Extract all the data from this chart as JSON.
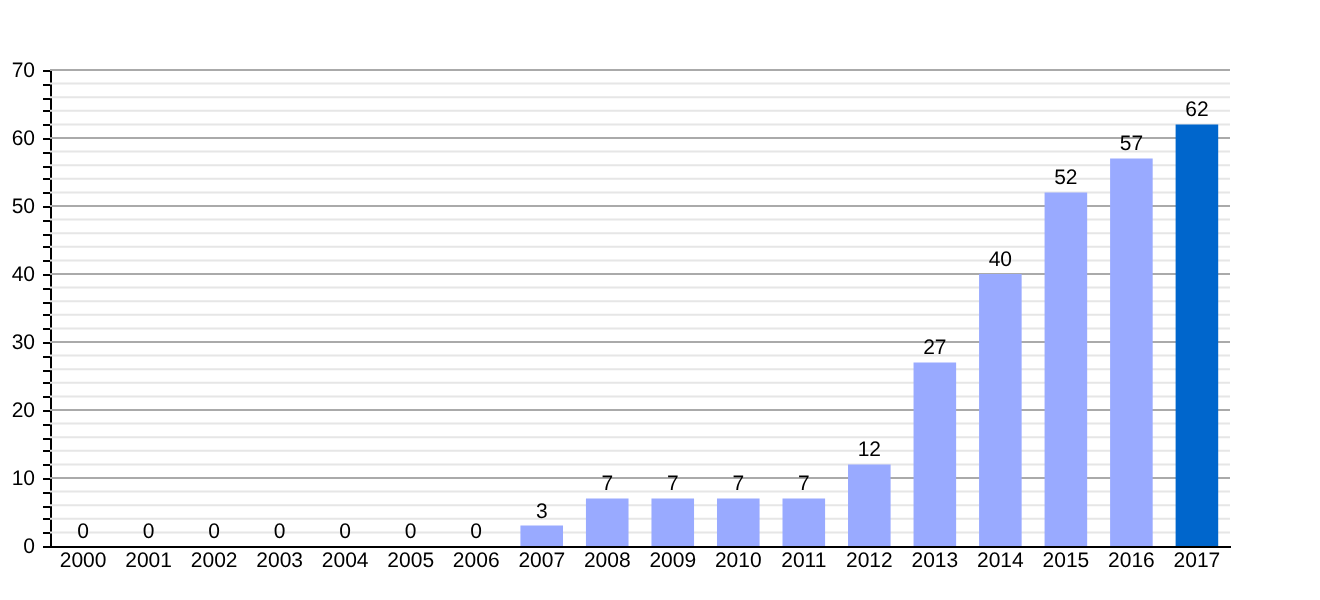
{
  "chart_data": {
    "type": "bar",
    "categories": [
      "2000",
      "2001",
      "2002",
      "2003",
      "2004",
      "2005",
      "2006",
      "2007",
      "2008",
      "2009",
      "2010",
      "2011",
      "2012",
      "2013",
      "2014",
      "2015",
      "2016",
      "2017"
    ],
    "values": [
      0,
      0,
      0,
      0,
      0,
      0,
      0,
      3,
      7,
      7,
      7,
      7,
      12,
      27,
      40,
      52,
      57,
      62
    ],
    "colors": [
      "#99aaff",
      "#99aaff",
      "#99aaff",
      "#99aaff",
      "#99aaff",
      "#99aaff",
      "#99aaff",
      "#99aaff",
      "#99aaff",
      "#99aaff",
      "#99aaff",
      "#99aaff",
      "#99aaff",
      "#99aaff",
      "#99aaff",
      "#99aaff",
      "#99aaff",
      "#0066cc"
    ],
    "ylim": [
      0,
      70
    ],
    "yticks": [
      0,
      {
        "value": 2,
        "label": null
      },
      {
        "value": 4,
        "label": null
      },
      {
        "value": 6,
        "label": null
      },
      {
        "value": 8,
        "label": null
      },
      10,
      {
        "value": 12,
        "label": null
      },
      {
        "value": 14,
        "label": null
      },
      {
        "value": 16,
        "label": null
      },
      {
        "value": 18,
        "label": null
      },
      20,
      {
        "value": 22,
        "label": null
      },
      {
        "value": 24,
        "label": null
      },
      {
        "value": 26,
        "label": null
      },
      {
        "value": 28,
        "label": null
      },
      30,
      {
        "value": 32,
        "label": null
      },
      {
        "value": 34,
        "label": null
      },
      {
        "value": 36,
        "label": null
      },
      {
        "value": 38,
        "label": null
      },
      40,
      {
        "value": 42,
        "label": null
      },
      {
        "value": 44,
        "label": null
      },
      {
        "value": 46,
        "label": null
      },
      {
        "value": 48,
        "label": null
      },
      50,
      {
        "value": 52,
        "label": null
      },
      {
        "value": 54,
        "label": null
      },
      {
        "value": 56,
        "label": null
      },
      {
        "value": 58,
        "label": null
      },
      60,
      {
        "value": 62,
        "label": null
      },
      {
        "value": 64,
        "label": null
      },
      {
        "value": 66,
        "label": null
      },
      {
        "value": 68,
        "label": null
      },
      70
    ],
    "grid": "y",
    "data_labels": true
  }
}
